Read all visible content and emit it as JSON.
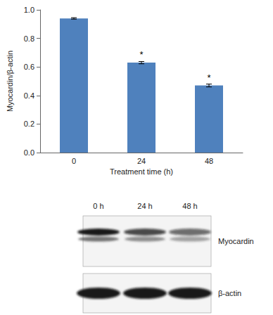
{
  "chart_data": {
    "type": "bar",
    "categories": [
      "0",
      "24",
      "48"
    ],
    "values": [
      0.94,
      0.63,
      0.47
    ],
    "errors": [
      0.005,
      0.008,
      0.01
    ],
    "annotations": [
      null,
      "*",
      "*"
    ],
    "color": "#4f81bd",
    "x_label": "Treatment time (h)",
    "y_label": "Myocardin/β-actin",
    "ylim": [
      0,
      1
    ],
    "yticks": [
      {
        "value": 0,
        "label": "0.0"
      },
      {
        "value": 0.2,
        "label": "0.2"
      },
      {
        "value": 0.4,
        "label": "0.4"
      },
      {
        "value": 0.6,
        "label": "0.6"
      },
      {
        "value": 0.8,
        "label": "0.8"
      },
      {
        "value": 1,
        "label": "1.0"
      }
    ],
    "grid": false
  },
  "blot": {
    "lanes": [
      "0 h",
      "24 h",
      "48 h"
    ],
    "rows": [
      "Myocardin",
      "β-actin"
    ]
  }
}
